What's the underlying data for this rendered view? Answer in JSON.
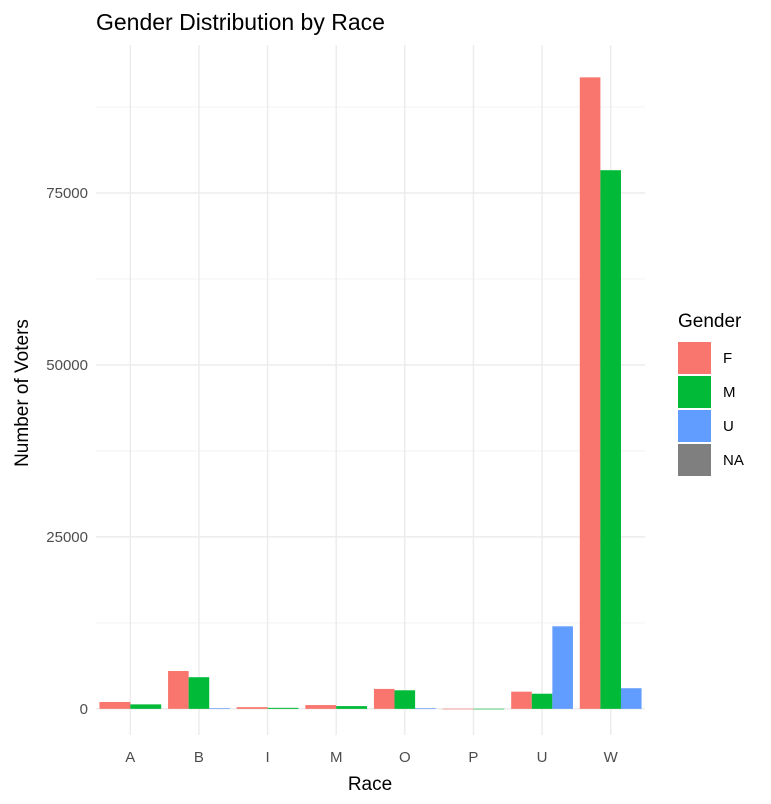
{
  "chart_data": {
    "type": "bar",
    "title": "Gender Distribution by Race",
    "xlabel": "Race",
    "ylabel": "Number of Voters",
    "categories": [
      "A",
      "B",
      "I",
      "M",
      "O",
      "P",
      "U",
      "W"
    ],
    "yticks": [
      0,
      25000,
      50000,
      75000
    ],
    "ylim": [
      -3800,
      96500
    ],
    "grid": true,
    "legend": {
      "title": "Gender",
      "placement": "right",
      "entries": [
        {
          "name": "F",
          "color": "#F8766D"
        },
        {
          "name": "M",
          "color": "#00BA38"
        },
        {
          "name": "U",
          "color": "#619CFF"
        },
        {
          "name": "NA",
          "color": "#7F7F7F"
        }
      ]
    },
    "bars": [
      {
        "category": "A",
        "groups": [
          {
            "gender": "F",
            "value": 1000
          },
          {
            "gender": "M",
            "value": 650
          }
        ]
      },
      {
        "category": "B",
        "groups": [
          {
            "gender": "F",
            "value": 5500
          },
          {
            "gender": "M",
            "value": 4600
          },
          {
            "gender": "U",
            "value": 100
          }
        ]
      },
      {
        "category": "I",
        "groups": [
          {
            "gender": "F",
            "value": 250
          },
          {
            "gender": "M",
            "value": 150
          }
        ]
      },
      {
        "category": "M",
        "groups": [
          {
            "gender": "F",
            "value": 550
          },
          {
            "gender": "M",
            "value": 400
          }
        ]
      },
      {
        "category": "O",
        "groups": [
          {
            "gender": "F",
            "value": 2900
          },
          {
            "gender": "M",
            "value": 2700
          },
          {
            "gender": "U",
            "value": 100
          }
        ]
      },
      {
        "category": "P",
        "groups": [
          {
            "gender": "F",
            "value": 20
          },
          {
            "gender": "M",
            "value": 15
          }
        ]
      },
      {
        "category": "U",
        "groups": [
          {
            "gender": "F",
            "value": 2500
          },
          {
            "gender": "M",
            "value": 2200
          },
          {
            "gender": "U",
            "value": 12000
          }
        ]
      },
      {
        "category": "W",
        "groups": [
          {
            "gender": "F",
            "value": 91800
          },
          {
            "gender": "M",
            "value": 78300
          },
          {
            "gender": "U",
            "value": 3000
          }
        ]
      }
    ]
  }
}
